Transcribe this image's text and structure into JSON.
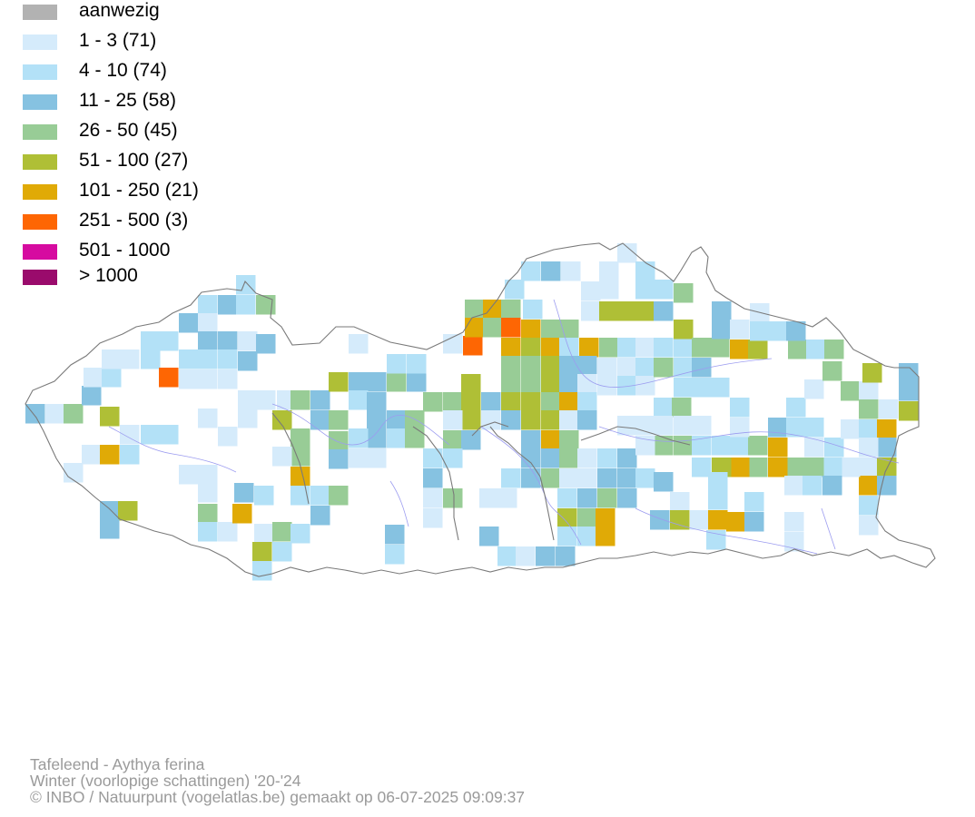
{
  "legend": {
    "items": [
      {
        "label": "aanwezig",
        "color": "#b2b2b2"
      },
      {
        "label": "1 - 3 (71)",
        "color": "#d5ebfb"
      },
      {
        "label": "4 - 10 (74)",
        "color": "#b3e1f7"
      },
      {
        "label": "11 - 25 (58)",
        "color": "#86c2e1"
      },
      {
        "label": "26 - 50 (45)",
        "color": "#98cc96"
      },
      {
        "label": "51 - 100 (27)",
        "color": "#afbf36"
      },
      {
        "label": "101 - 250 (21)",
        "color": "#e0aa06"
      },
      {
        "label": "251 - 500 (3)",
        "color": "#fe6603"
      },
      {
        "label": "501 - 1000",
        "color": "#d60ba0"
      },
      {
        "label": "> 1000",
        "color": "#9a0b6c"
      }
    ]
  },
  "credits": {
    "line1": "Tafeleend - Aythya ferina",
    "line2": "Winter (voorlopige schattingen) '20-'24",
    "line3": "© INBO / Natuurpunt (vogelatlas.be) gemaakt op 06-07-2025 09:09:37"
  },
  "map": {
    "border_color": "#7a7a7a",
    "river_color": "#9c9cf0"
  }
}
